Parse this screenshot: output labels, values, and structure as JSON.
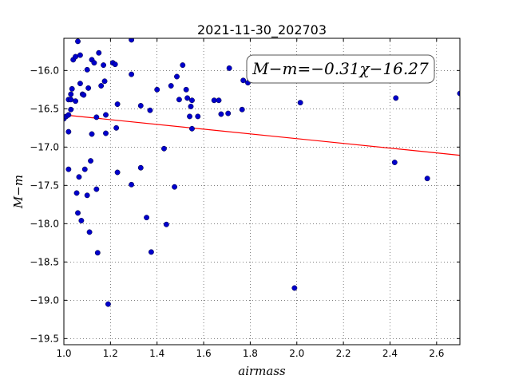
{
  "chart_data": {
    "type": "scatter",
    "title": "2021-11-30_202703",
    "xlabel": "airmass",
    "ylabel": "M−m",
    "xlim": [
      1.0,
      2.7
    ],
    "ylim": [
      -19.58,
      -15.58
    ],
    "y_inverted": false,
    "grid": true,
    "x_ticks": [
      1.0,
      1.2,
      1.4,
      1.6,
      1.8,
      2.0,
      2.2,
      2.4,
      2.6
    ],
    "x_tick_labels": [
      "1.0",
      "1.2",
      "1.4",
      "1.6",
      "1.8",
      "2.0",
      "2.2",
      "2.4",
      "2.6"
    ],
    "y_ticks": [
      -16.0,
      -16.5,
      -17.0,
      -17.5,
      -18.0,
      -18.5,
      -19.0,
      -19.5
    ],
    "y_tick_labels": [
      "−16.0",
      "−16.5",
      "−17.0",
      "−17.5",
      "−18.0",
      "−18.5",
      "−19.0",
      "−19.5"
    ],
    "annotation": "M−m=−0.31χ−16.27",
    "fit": {
      "slope": -0.31,
      "intercept": -16.27,
      "color": "#ff0000"
    },
    "point_color": "#0000cc",
    "points": [
      [
        1.0,
        -16.63
      ],
      [
        1.01,
        -16.6
      ],
      [
        1.02,
        -16.38
      ],
      [
        1.02,
        -16.58
      ],
      [
        1.02,
        -16.8
      ],
      [
        1.02,
        -17.29
      ],
      [
        1.03,
        -16.51
      ],
      [
        1.03,
        -16.38
      ],
      [
        1.03,
        -16.31
      ],
      [
        1.035,
        -16.24
      ],
      [
        1.04,
        -15.86
      ],
      [
        1.05,
        -15.82
      ],
      [
        1.05,
        -16.4
      ],
      [
        1.055,
        -17.6
      ],
      [
        1.06,
        -15.62
      ],
      [
        1.06,
        -17.86
      ],
      [
        1.065,
        -17.39
      ],
      [
        1.07,
        -15.8
      ],
      [
        1.07,
        -16.17
      ],
      [
        1.075,
        -17.96
      ],
      [
        1.08,
        -16.31
      ],
      [
        1.085,
        -16.32
      ],
      [
        1.09,
        -17.29
      ],
      [
        1.1,
        -17.63
      ],
      [
        1.1,
        -15.99
      ],
      [
        1.105,
        -16.23
      ],
      [
        1.11,
        -18.11
      ],
      [
        1.115,
        -17.18
      ],
      [
        1.12,
        -15.86
      ],
      [
        1.12,
        -16.83
      ],
      [
        1.13,
        -15.9
      ],
      [
        1.14,
        -16.61
      ],
      [
        1.14,
        -17.55
      ],
      [
        1.145,
        -18.38
      ],
      [
        1.15,
        -15.77
      ],
      [
        1.16,
        -16.2
      ],
      [
        1.17,
        -15.93
      ],
      [
        1.175,
        -16.14
      ],
      [
        1.18,
        -16.58
      ],
      [
        1.18,
        -16.82
      ],
      [
        1.19,
        -19.05
      ],
      [
        1.21,
        -15.9
      ],
      [
        1.22,
        -15.92
      ],
      [
        1.225,
        -16.75
      ],
      [
        1.23,
        -16.44
      ],
      [
        1.23,
        -17.33
      ],
      [
        1.29,
        -15.6
      ],
      [
        1.29,
        -16.05
      ],
      [
        1.29,
        -17.49
      ],
      [
        1.33,
        -16.46
      ],
      [
        1.33,
        -17.27
      ],
      [
        1.355,
        -17.92
      ],
      [
        1.37,
        -16.52
      ],
      [
        1.375,
        -18.37
      ],
      [
        1.4,
        -16.25
      ],
      [
        1.43,
        -17.02
      ],
      [
        1.44,
        -18.01
      ],
      [
        1.46,
        -16.2
      ],
      [
        1.475,
        -17.52
      ],
      [
        1.485,
        -16.08
      ],
      [
        1.495,
        -16.38
      ],
      [
        1.51,
        -15.93
      ],
      [
        1.525,
        -16.25
      ],
      [
        1.53,
        -16.36
      ],
      [
        1.54,
        -16.6
      ],
      [
        1.545,
        -16.47
      ],
      [
        1.55,
        -16.39
      ],
      [
        1.55,
        -16.76
      ],
      [
        1.575,
        -16.6
      ],
      [
        1.645,
        -16.39
      ],
      [
        1.665,
        -16.39
      ],
      [
        1.675,
        -16.57
      ],
      [
        1.705,
        -16.56
      ],
      [
        1.71,
        -15.97
      ],
      [
        1.765,
        -16.51
      ],
      [
        1.77,
        -16.13
      ],
      [
        1.79,
        -16.16
      ],
      [
        1.99,
        -18.84
      ],
      [
        2.015,
        -16.42
      ],
      [
        2.42,
        -17.2
      ],
      [
        2.425,
        -16.36
      ],
      [
        2.56,
        -17.41
      ],
      [
        2.7,
        -16.3
      ]
    ]
  }
}
